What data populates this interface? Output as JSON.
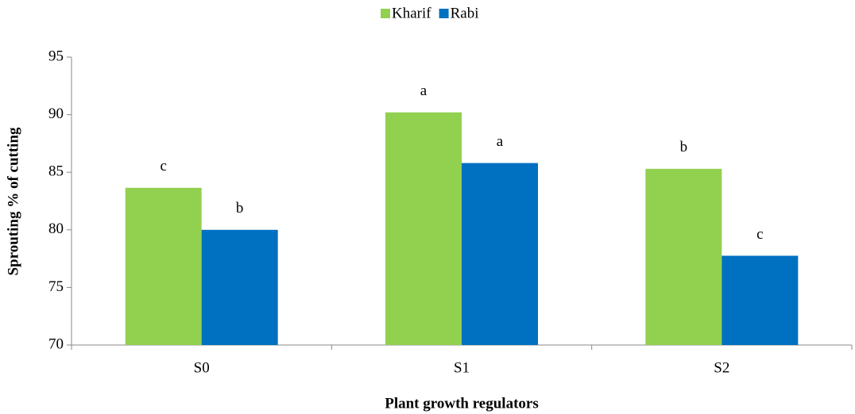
{
  "chart_data": {
    "type": "bar",
    "x_label": "Plant growth regulators",
    "y_label": "Sprouting %  of cutting",
    "categories": [
      "S0",
      "S1",
      "S2"
    ],
    "series": [
      {
        "name": "Kharif",
        "color": "#92d050",
        "values": [
          83.65,
          90.2,
          85.3
        ],
        "annotations": [
          "c",
          "a",
          "b"
        ]
      },
      {
        "name": "Rabi",
        "color": "#0070c0",
        "values": [
          80.0,
          85.8,
          77.75
        ],
        "annotations": [
          "b",
          "a",
          "c"
        ]
      }
    ],
    "ylim": [
      70,
      95
    ],
    "yticks": [
      70,
      75,
      80,
      85,
      90,
      95
    ],
    "legend": "top",
    "grid": false
  }
}
